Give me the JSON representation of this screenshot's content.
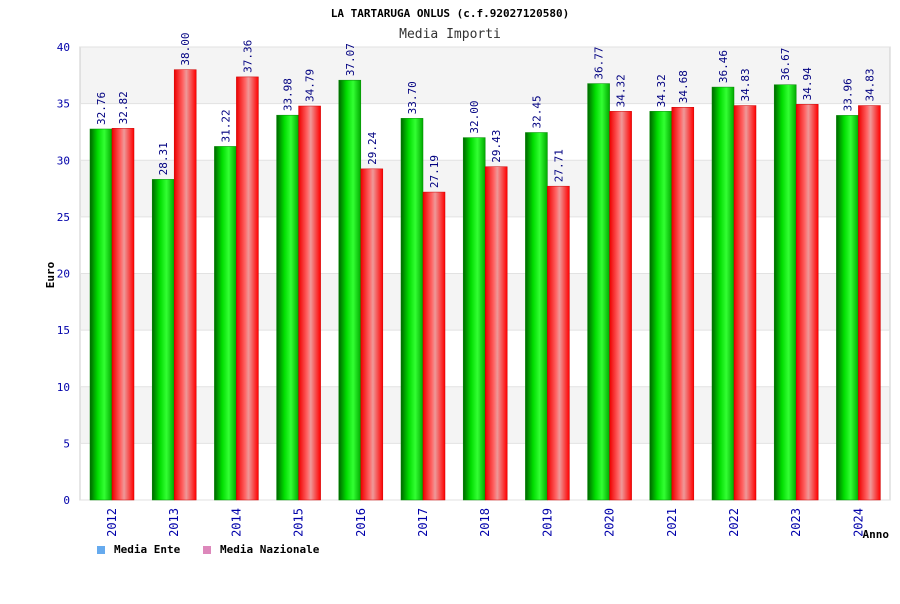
{
  "chart_data": {
    "type": "bar",
    "title": "LA TARTARUGA ONLUS (c.f.92027120580)",
    "subtitle": "Media Importi",
    "xlabel": "Anno",
    "ylabel": "Euro",
    "ylim": [
      0,
      40
    ],
    "yticks": [
      0,
      5,
      10,
      15,
      20,
      25,
      30,
      35,
      40
    ],
    "grid": true,
    "legend_position": "bottom-left",
    "categories": [
      "2012",
      "2013",
      "2014",
      "2015",
      "2016",
      "2017",
      "2018",
      "2019",
      "2020",
      "2021",
      "2022",
      "2023",
      "2024"
    ],
    "series": [
      {
        "name": "Media Ente",
        "color": "#00cc00",
        "legend_color": "#66aaee",
        "values": [
          32.76,
          28.31,
          31.22,
          33.98,
          37.07,
          33.7,
          32.0,
          32.45,
          36.77,
          34.32,
          36.46,
          36.67,
          33.96
        ],
        "labels": [
          "32.76",
          "28.31",
          "31.22",
          "33.98",
          "37.07",
          "33.70",
          "32.00",
          "32.45",
          "36.77",
          "34.32",
          "36.46",
          "36.67",
          "33.96"
        ]
      },
      {
        "name": "Media Nazionale",
        "color": "#ff1111",
        "legend_color": "#dd88bb",
        "values": [
          32.82,
          38.0,
          37.36,
          34.79,
          29.24,
          27.19,
          29.43,
          27.71,
          34.32,
          34.68,
          34.83,
          34.94,
          34.83
        ],
        "labels": [
          "32.82",
          "38.00",
          "37.36",
          "34.79",
          "29.24",
          "27.19",
          "29.43",
          "27.71",
          "34.32",
          "34.68",
          "34.83",
          "34.94",
          "34.83"
        ]
      }
    ]
  }
}
